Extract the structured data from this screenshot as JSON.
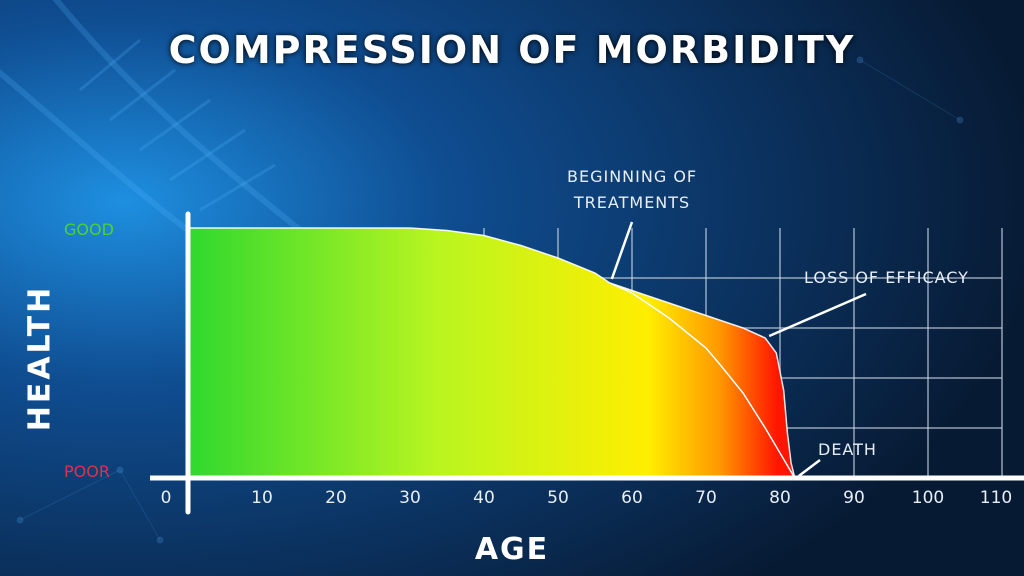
{
  "chart_data": {
    "type": "area",
    "title": "COMPRESSION OF MORBIDITY",
    "xlabel": "AGE",
    "ylabel": "HEALTH",
    "y_levels": {
      "top": "GOOD",
      "bottom": "POOR"
    },
    "x_ticks": [
      0,
      10,
      20,
      30,
      40,
      50,
      60,
      70,
      80,
      90,
      100,
      110
    ],
    "xlim": [
      0,
      110
    ],
    "ylim": [
      0,
      1
    ],
    "grid": true,
    "series": [
      {
        "x": [
          0,
          30,
          35,
          40,
          45,
          50,
          55,
          57,
          60,
          65,
          70,
          75,
          78,
          79.5,
          80.5,
          81,
          81.5,
          82
        ],
        "values": [
          1.0,
          1.0,
          0.99,
          0.97,
          0.93,
          0.88,
          0.82,
          0.78,
          0.75,
          0.7,
          0.65,
          0.6,
          0.56,
          0.5,
          0.35,
          0.18,
          0.06,
          0.0
        ]
      },
      {
        "x": [
          57,
          60,
          65,
          70,
          72,
          75,
          78,
          80,
          81,
          82
        ],
        "values": [
          0.78,
          0.74,
          0.64,
          0.52,
          0.45,
          0.34,
          0.2,
          0.1,
          0.05,
          0.0
        ]
      }
    ],
    "annotations": [
      {
        "lines": [
          "BEGINNING OF",
          "TREATMENTS"
        ],
        "x": 57,
        "y": 0.78
      },
      {
        "lines": [
          "LOSS OF EFFICACY"
        ],
        "x": 78,
        "y": 0.56
      },
      {
        "lines": [
          "DEATH"
        ],
        "x": 82,
        "y": 0.0
      }
    ]
  }
}
